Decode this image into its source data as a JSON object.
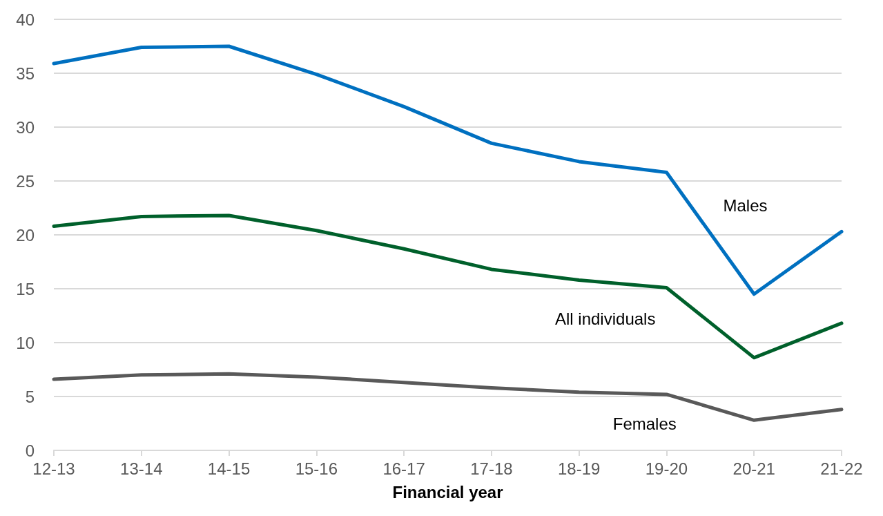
{
  "chart_data": {
    "type": "line",
    "xlabel": "Financial year",
    "categories": [
      "12-13",
      "13-14",
      "14-15",
      "15-16",
      "16-17",
      "17-18",
      "18-19",
      "19-20",
      "20-21",
      "21-22"
    ],
    "series": [
      {
        "name": "Males",
        "color": "#0070c0",
        "values": [
          35.9,
          37.4,
          37.5,
          34.9,
          31.9,
          28.5,
          26.8,
          25.8,
          14.5,
          20.3
        ]
      },
      {
        "name": "All individuals",
        "color": "#00602b",
        "values": [
          20.8,
          21.7,
          21.8,
          20.4,
          18.7,
          16.8,
          15.8,
          15.1,
          8.6,
          11.8
        ]
      },
      {
        "name": "Females",
        "color": "#595959",
        "values": [
          6.6,
          7.0,
          7.1,
          6.8,
          6.3,
          5.8,
          5.4,
          5.2,
          2.8,
          3.8
        ]
      }
    ],
    "ylim": [
      0,
      40
    ],
    "yticks": [
      0,
      5,
      10,
      15,
      20,
      25,
      30,
      35,
      40
    ],
    "grid": "y",
    "legend": false,
    "marker": "none",
    "line_style": "solid"
  }
}
